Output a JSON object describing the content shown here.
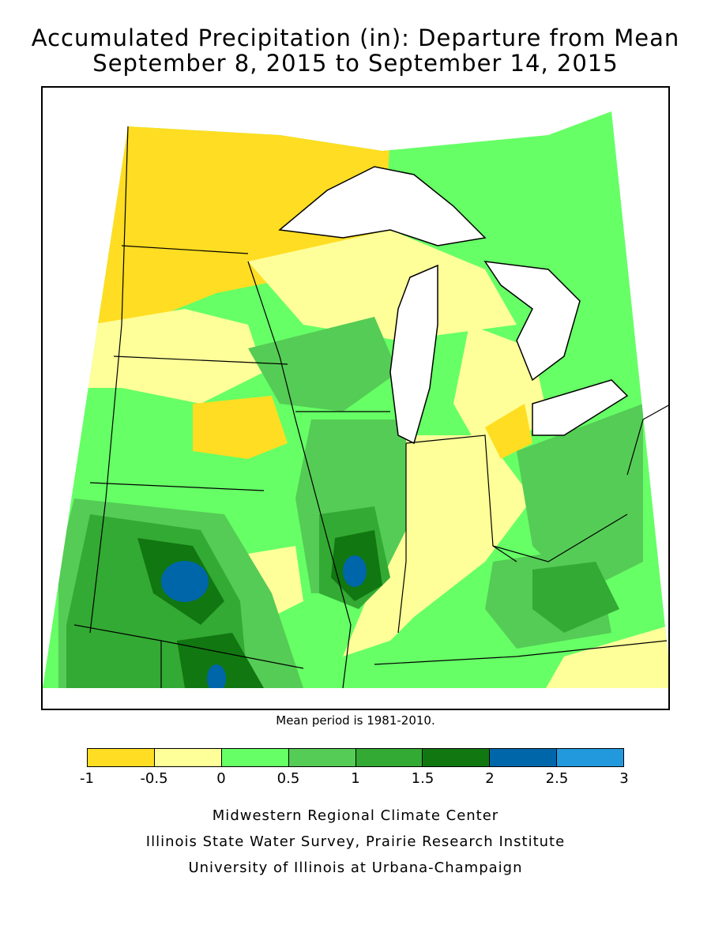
{
  "title": {
    "line1": "Accumulated Precipitation (in): Departure from Mean",
    "line2": "September 8, 2015 to September 14, 2015"
  },
  "mean_period_note": "Mean period is 1981-2010.",
  "legend": {
    "ticks": [
      "-1",
      "-0.5",
      "0",
      "0.5",
      "1",
      "1.5",
      "2",
      "2.5",
      "3"
    ],
    "colors": [
      "#ffdd22",
      "#ffff99",
      "#66ff66",
      "#55cc55",
      "#33aa33",
      "#117711",
      "#0066aa",
      "#2299dd"
    ]
  },
  "credits": {
    "line1": "Midwestern Regional Climate Center",
    "line2": "Illinois State Water Survey, Prairie Research Institute",
    "line3": "University of Illinois at Urbana-Champaign"
  },
  "colors": {
    "dry_1": "#ffdd22",
    "dry_2": "#ffff99",
    "wet_1": "#66ff66",
    "wet_2": "#55cc55",
    "wet_3": "#33aa33",
    "wet_4": "#117711",
    "wet_5": "#0066aa",
    "lake": "#ffffff",
    "border": "#000000"
  }
}
